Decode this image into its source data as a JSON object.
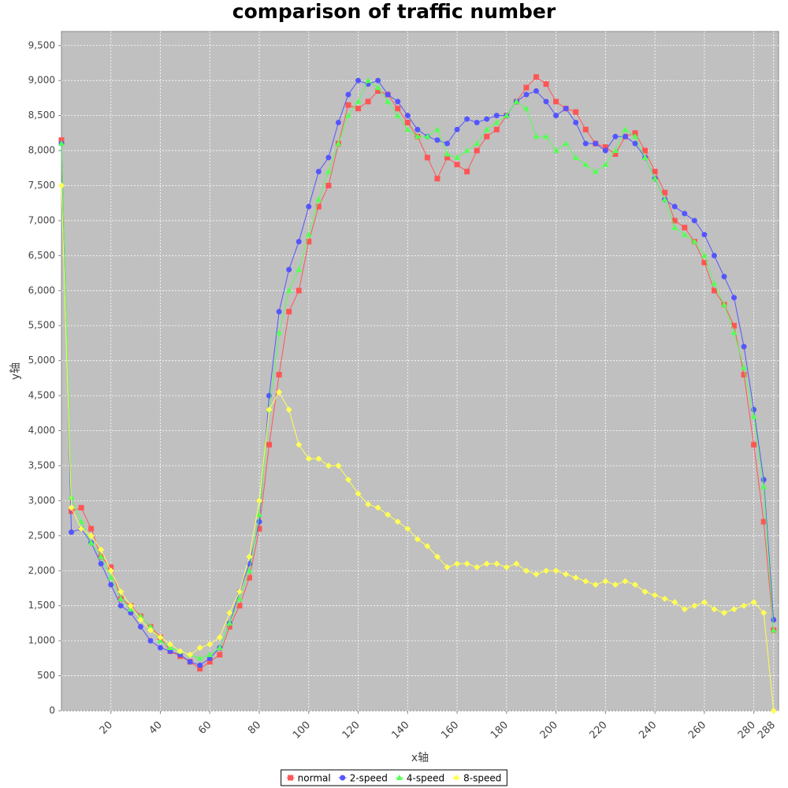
{
  "chart_data": {
    "type": "line",
    "title": "comparison of traffic number",
    "x_label": "x轴",
    "y_label": "y轴",
    "x": [
      0,
      4,
      8,
      12,
      16,
      20,
      24,
      28,
      32,
      36,
      40,
      44,
      48,
      52,
      56,
      60,
      64,
      68,
      72,
      76,
      80,
      84,
      88,
      92,
      96,
      100,
      104,
      108,
      112,
      116,
      120,
      124,
      128,
      132,
      136,
      140,
      144,
      148,
      152,
      156,
      160,
      164,
      168,
      172,
      176,
      180,
      184,
      188,
      192,
      196,
      200,
      204,
      208,
      212,
      216,
      220,
      224,
      228,
      232,
      236,
      240,
      244,
      248,
      252,
      256,
      260,
      264,
      268,
      272,
      276,
      280,
      284,
      288
    ],
    "series": [
      {
        "name": "normal",
        "color": "#ff5555",
        "marker": "square",
        "values": [
          8150,
          2850,
          2900,
          2600,
          2200,
          2050,
          1600,
          1500,
          1350,
          1200,
          1050,
          850,
          780,
          700,
          600,
          700,
          800,
          1200,
          1500,
          1900,
          2600,
          3800,
          4800,
          5700,
          6000,
          6700,
          7200,
          7500,
          8100,
          8650,
          8600,
          8700,
          8850,
          8800,
          8600,
          8400,
          8200,
          7900,
          7600,
          7900,
          7800,
          7700,
          8000,
          8200,
          8300,
          8500,
          8700,
          8900,
          9050,
          8950,
          8700,
          8600,
          8550,
          8300,
          8100,
          8050,
          7950,
          8200,
          8250,
          8000,
          7700,
          7400,
          7000,
          6900,
          6700,
          6400,
          6000,
          5800,
          5500,
          4800,
          3800,
          2700,
          1150
        ]
      },
      {
        "name": "2-speed",
        "color": "#5555ff",
        "marker": "circle",
        "values": [
          8100,
          2550,
          2600,
          2400,
          2100,
          1800,
          1500,
          1400,
          1200,
          1000,
          900,
          850,
          800,
          700,
          650,
          750,
          900,
          1250,
          1700,
          2100,
          2700,
          4500,
          5700,
          6300,
          6700,
          7200,
          7700,
          7900,
          8400,
          8800,
          9000,
          8950,
          9000,
          8800,
          8700,
          8500,
          8300,
          8200,
          8150,
          8100,
          8300,
          8450,
          8400,
          8450,
          8500,
          8500,
          8700,
          8800,
          8850,
          8700,
          8500,
          8600,
          8400,
          8100,
          8100,
          8000,
          8200,
          8200,
          8100,
          7900,
          7600,
          7300,
          7200,
          7100,
          7000,
          6800,
          6500,
          6200,
          5900,
          5200,
          4300,
          3300,
          1300
        ]
      },
      {
        "name": "4-speed",
        "color": "#55ff55",
        "marker": "triangle",
        "values": [
          8100,
          3050,
          2700,
          2400,
          2200,
          1900,
          1600,
          1450,
          1350,
          1200,
          1000,
          900,
          850,
          800,
          750,
          800,
          900,
          1250,
          1600,
          2000,
          2800,
          4300,
          5400,
          6000,
          6300,
          6800,
          7300,
          7700,
          8100,
          8500,
          8700,
          9000,
          8900,
          8700,
          8500,
          8300,
          8200,
          8200,
          8300,
          7950,
          7900,
          8000,
          8100,
          8300,
          8400,
          8500,
          8700,
          8600,
          8200,
          8200,
          8000,
          8100,
          7900,
          7800,
          7700,
          7800,
          8000,
          8300,
          8200,
          7900,
          7600,
          7300,
          6900,
          6800,
          6700,
          6500,
          6100,
          5800,
          5400,
          4900,
          4200,
          3200,
          1150
        ]
      },
      {
        "name": "8-speed",
        "color": "#ffff55",
        "marker": "diamond",
        "values": [
          7500,
          2900,
          2600,
          2500,
          2300,
          2000,
          1700,
          1500,
          1300,
          1150,
          1050,
          950,
          850,
          800,
          900,
          950,
          1050,
          1400,
          1700,
          2200,
          3000,
          4300,
          4550,
          4300,
          3800,
          3600,
          3600,
          3500,
          3500,
          3300,
          3100,
          2950,
          2900,
          2800,
          2700,
          2600,
          2450,
          2350,
          2200,
          2050,
          2100,
          2100,
          2050,
          2100,
          2100,
          2050,
          2100,
          2000,
          1950,
          2000,
          2000,
          1950,
          1900,
          1850,
          1800,
          1850,
          1800,
          1850,
          1800,
          1700,
          1650,
          1600,
          1550,
          1450,
          1500,
          1550,
          1450,
          1400,
          1450,
          1500,
          1550,
          1400,
          0
        ]
      }
    ],
    "xlim": [
      0,
      290
    ],
    "ylim": [
      0,
      9700
    ],
    "xticks": [
      20,
      40,
      60,
      80,
      100,
      120,
      140,
      160,
      180,
      200,
      220,
      240,
      260,
      280,
      288
    ],
    "yticks": [
      0,
      500,
      {
        "value": 1000,
        "label": "1,000"
      },
      {
        "value": 1500,
        "label": "1,500"
      },
      {
        "value": 2000,
        "label": "2,000"
      },
      {
        "value": 2500,
        "label": "2,500"
      },
      {
        "value": 3000,
        "label": "3,000"
      },
      {
        "value": 3500,
        "label": "3,500"
      },
      {
        "value": 4000,
        "label": "4,000"
      },
      {
        "value": 4500,
        "label": "4,500"
      },
      {
        "value": 5000,
        "label": "5,000"
      },
      {
        "value": 5500,
        "label": "5,500"
      },
      {
        "value": 6000,
        "label": "6,000"
      },
      {
        "value": 6500,
        "label": "6,500"
      },
      {
        "value": 7000,
        "label": "7,000"
      },
      {
        "value": 7500,
        "label": "7,500"
      },
      {
        "value": 8000,
        "label": "8,000"
      },
      {
        "value": 8500,
        "label": "8,500"
      },
      {
        "value": 9000,
        "label": "9,000"
      },
      {
        "value": 9500,
        "label": "9,500"
      }
    ],
    "grid": true,
    "legend": "bottom"
  }
}
